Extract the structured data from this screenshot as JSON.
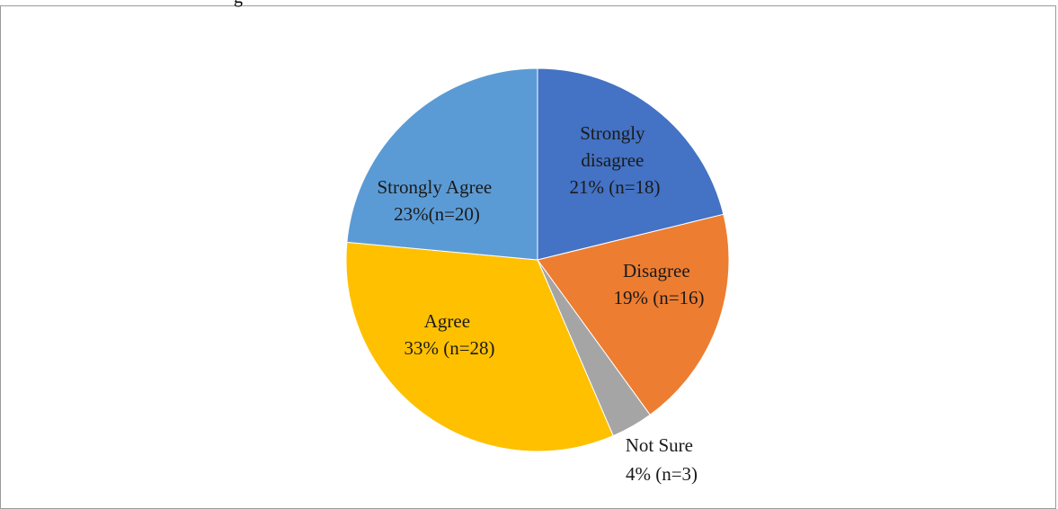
{
  "clipped_text": "g",
  "chart_data": {
    "type": "pie",
    "title": "",
    "start_angle_deg": 0,
    "direction": "clockwise",
    "slices": [
      {
        "label": "Strongly disagree",
        "pct_text": "21% (n=18)",
        "value": 18,
        "color": "#4472C4"
      },
      {
        "label": "Disagree",
        "pct_text": "19% (n=16)",
        "value": 16,
        "color": "#ED7D31"
      },
      {
        "label": "Not Sure",
        "pct_text": "4% (n=3)",
        "value": 3,
        "color": "#A5A5A5"
      },
      {
        "label": "Agree",
        "pct_text": "33% (n=28)",
        "value": 28,
        "color": "#FFC000"
      },
      {
        "label": "Strongly Agree",
        "pct_text": "23%(n=20)",
        "value": 20,
        "color": "#5B9BD5"
      }
    ]
  }
}
